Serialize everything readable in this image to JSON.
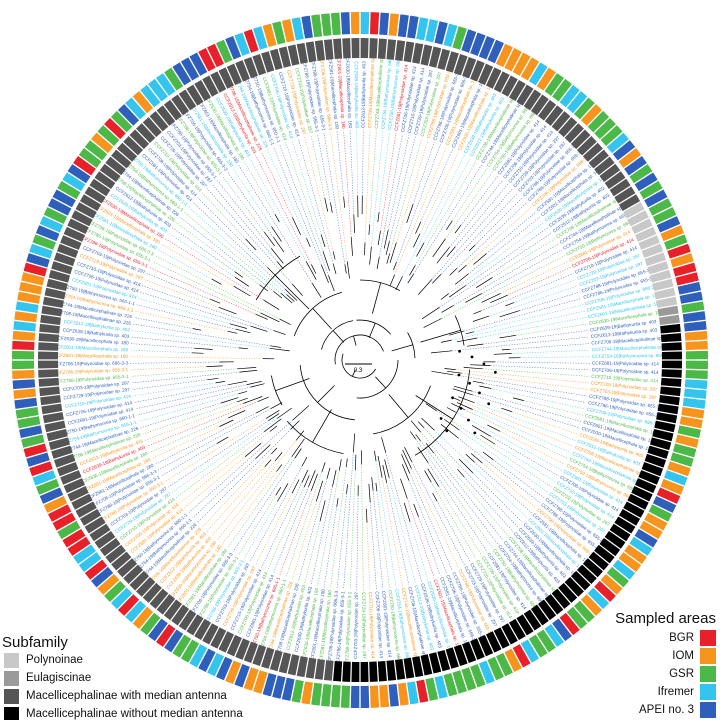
{
  "scale_bar": {
    "label": "0.3"
  },
  "colors": {
    "subfamily": [
      "#c8c8c8",
      "#9a9a9a",
      "#555555",
      "#000000"
    ],
    "area": [
      "#e8202a",
      "#f7941d",
      "#4cb848",
      "#34c4ee",
      "#2d5fbb"
    ]
  },
  "legend_subfamily": {
    "title": "Subfamily",
    "items": [
      {
        "label": "Polynoinae"
      },
      {
        "label": "Eulagiscinae"
      },
      {
        "label": "Macellicephalinae with median antenna"
      },
      {
        "label": "Macellicephalinae without median antenna"
      }
    ]
  },
  "legend_area": {
    "title": "Sampled areas",
    "items": [
      {
        "label": "BGR"
      },
      {
        "label": "IOM"
      },
      {
        "label": "GSR"
      },
      {
        "label": "Ifremer"
      },
      {
        "label": "APEI no. 3"
      }
    ]
  },
  "tips": {
    "sample": [
      "CCFZ681-19|Polynoidae sp. 414",
      "CCFZ706-19|Polynoidae sp. 414",
      "CCFZ710-19|Polynoidae sp. 414",
      "CCFZ729-19|Polynoidae sp. 297",
      "CCFZ703-19|Polynoidae sp. 297",
      "CCFZ788-19|Polynoidae sp. 655-3-1",
      "CCFZ786-19|Polynoidae sp. 655-3-1",
      "CCFZ706-19|Polynoidae sp. 666-3-3",
      "CCFZ581-19|Macellicephala sp. 180",
      "CCFZ601-19|Macellicephala sp. 180",
      "CCFZ630-19|Macellicephala sp. 180",
      "CCFZ639-19|Bathykurila sp. 403",
      "CCFZ612-19|Bathykurila sp. 403",
      "CCFZ708-19|Macellicephalinae sp. 226",
      "CCFZ744-19|Macellicephalinae sp. 226",
      "CCFZ754-19|Bathymoorea sp. 660-1-1",
      "CCFZ750-19|Bathymoorea sp. 660-1-1"
    ]
  }
}
